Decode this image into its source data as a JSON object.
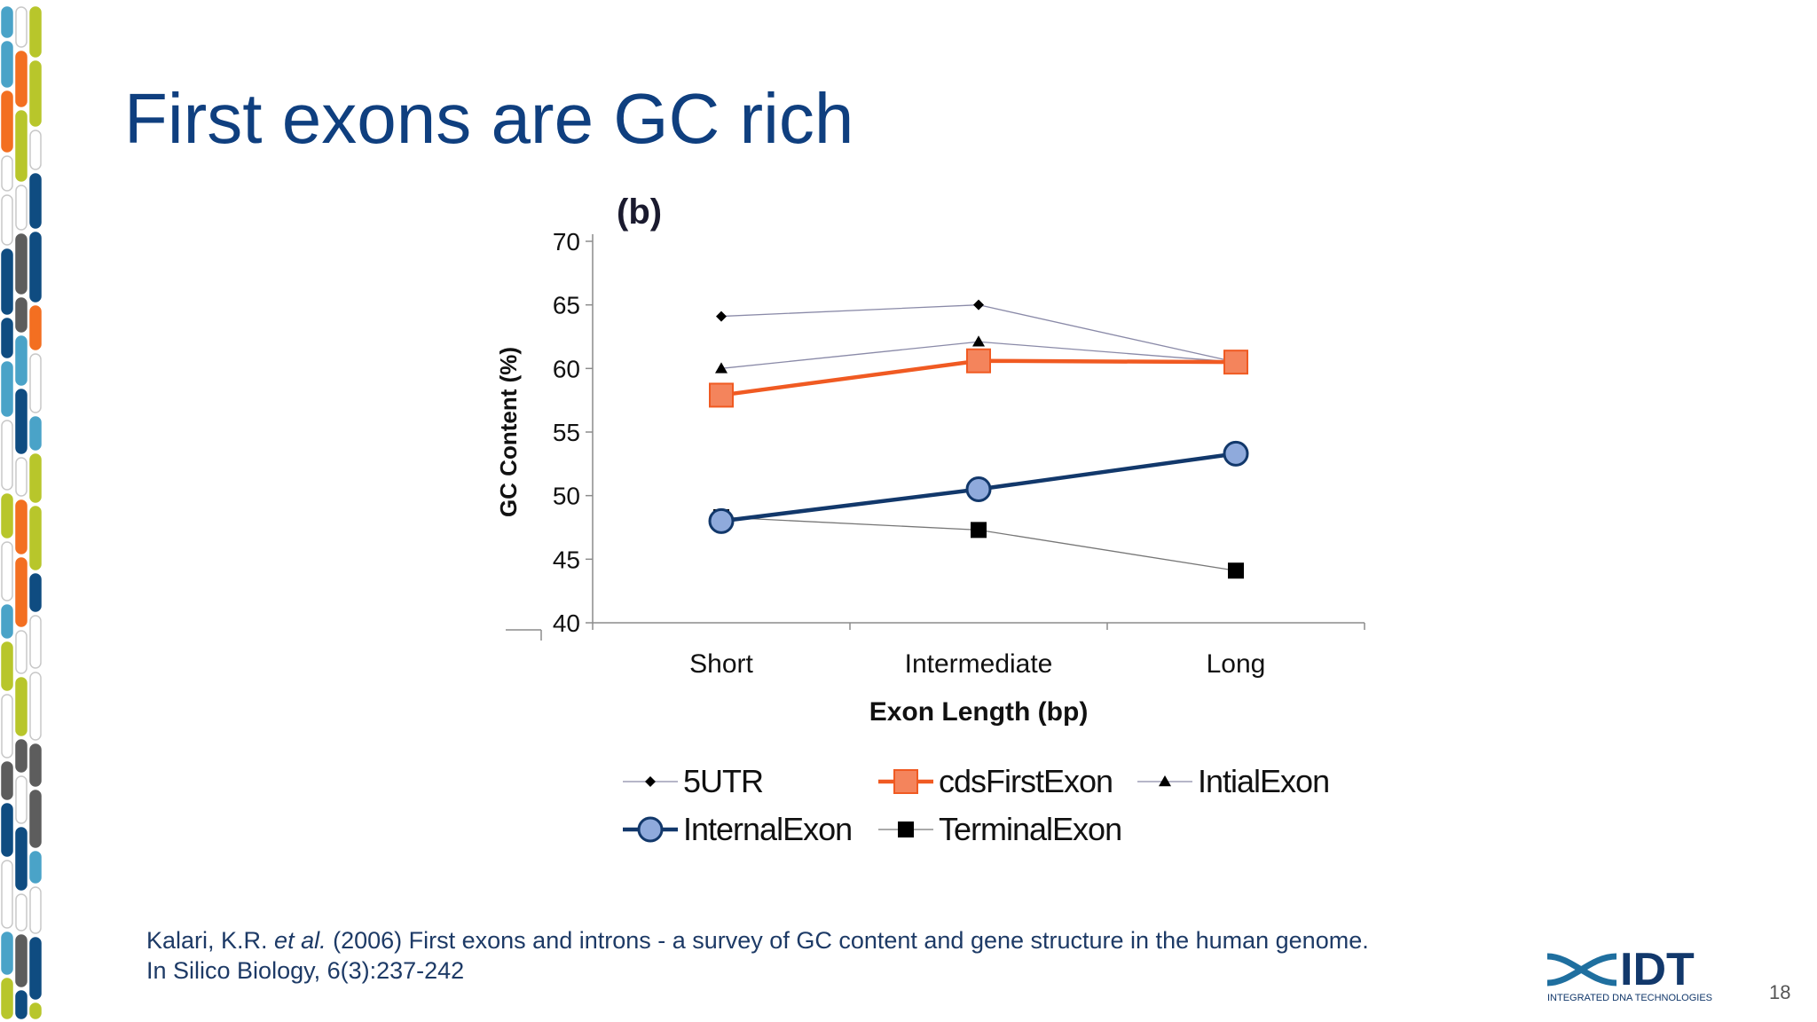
{
  "slide": {
    "title": "First exons are GC rich",
    "page_number": "18"
  },
  "citation": {
    "line1_author": "Kalari, K.R. ",
    "line1_etal": "et al.",
    "line1_rest": " (2006) First exons and introns - a survey of GC content and gene structure in the human genome.",
    "line2": "In Silico Biology, 6(3):237-242"
  },
  "logo": {
    "wordmark": "IDT",
    "tagline": "INTEGRATED DNA TECHNOLOGIES"
  },
  "chart_data": {
    "type": "line",
    "panel_label": "(b)",
    "title": "",
    "xlabel": "Exon Length (bp)",
    "ylabel": "GC Content (%)",
    "categories": [
      "Short",
      "Intermediate",
      "Long"
    ],
    "ylim": [
      40,
      70
    ],
    "yticks": [
      40,
      45,
      50,
      55,
      60,
      65,
      70
    ],
    "grid": false,
    "legend_position": "bottom",
    "series": [
      {
        "name": "5UTR",
        "values": [
          64.1,
          65.0,
          60.5
        ],
        "color": "#8a8aa8",
        "marker": "diamond",
        "marker_color": "#000000",
        "style": "thin"
      },
      {
        "name": "cdsFirstExon",
        "values": [
          57.9,
          60.6,
          60.5
        ],
        "color": "#f05a22",
        "marker": "square",
        "marker_color": "#f4845c",
        "style": "thick"
      },
      {
        "name": "IntialExon",
        "values": [
          60.0,
          62.1,
          60.5
        ],
        "color": "#8a8aa8",
        "marker": "triangle",
        "marker_color": "#000000",
        "style": "thin"
      },
      {
        "name": "InternalExon",
        "values": [
          48.0,
          50.5,
          53.3
        ],
        "color": "#12386b",
        "marker": "circle",
        "marker_color": "#8faadc",
        "style": "thick"
      },
      {
        "name": "TerminalExon",
        "values": [
          48.3,
          47.3,
          44.1
        ],
        "color": "#777777",
        "marker": "square",
        "marker_color": "#000000",
        "style": "thin"
      }
    ]
  }
}
